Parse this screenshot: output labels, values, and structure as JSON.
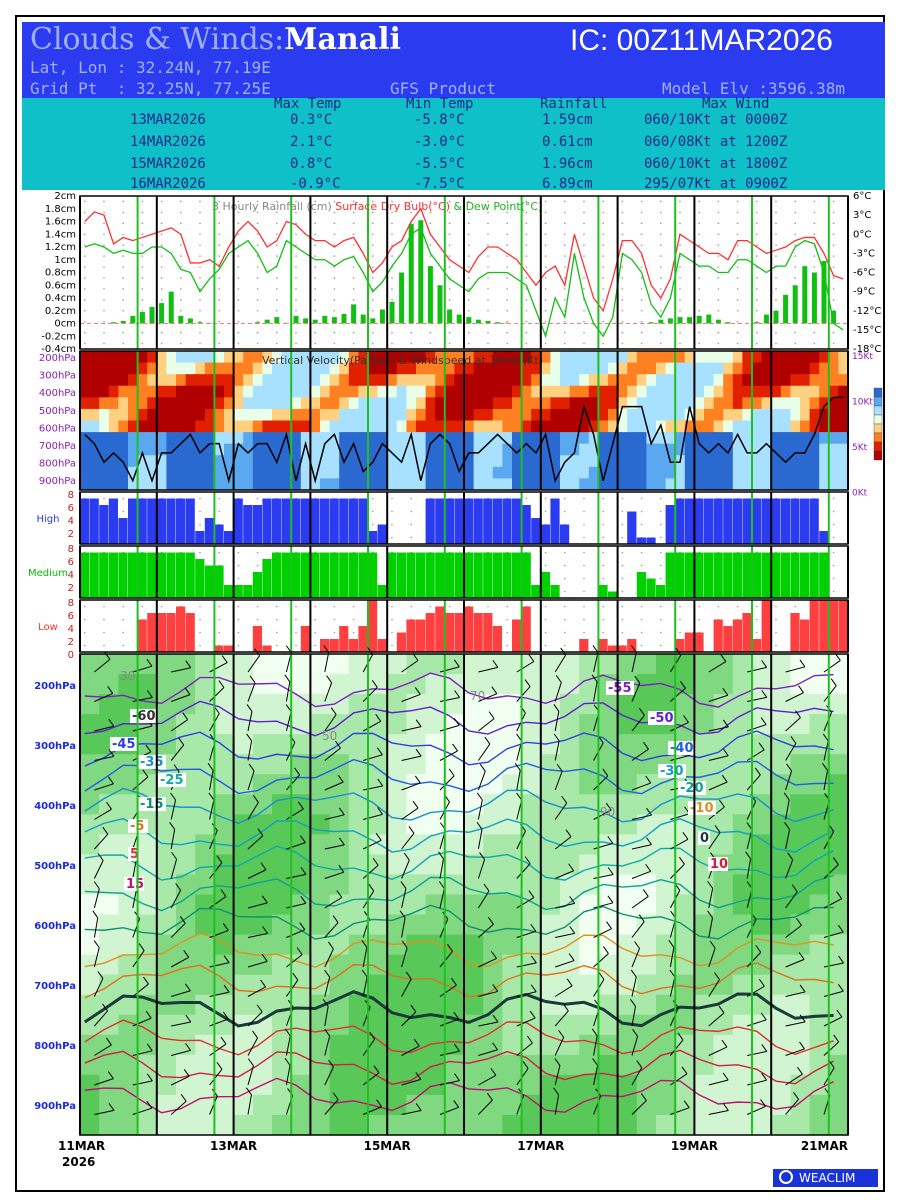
{
  "header": {
    "title_prefix": "Clouds & Winds:",
    "location": "Manali",
    "ic": "IC: 00Z11MAR2026",
    "latlon": "Lat, Lon : 32.24N, 77.19E",
    "gridpt": "Grid Pt  : 32.25N, 77.25E",
    "product": "GFS Product",
    "elev": "Model Elv :3596.38m"
  },
  "table": {
    "columns": [
      "Max Temp",
      "Min Temp",
      "Rainfall",
      "Max Wind"
    ],
    "rows": [
      {
        "date": "13MAR2026",
        "max": "0.3°C",
        "min": "-5.8°C",
        "rain": "1.59cm",
        "wind": "060/10Kt at 0000Z"
      },
      {
        "date": "14MAR2026",
        "max": "2.1°C",
        "min": "-3.0°C",
        "rain": "0.61cm",
        "wind": "060/08Kt at 1200Z"
      },
      {
        "date": "15MAR2026",
        "max": "0.8°C",
        "min": "-5.5°C",
        "rain": "1.96cm",
        "wind": "060/10Kt at 1800Z"
      },
      {
        "date": "16MAR2026",
        "max": "-0.9°C",
        "min": "-7.5°C",
        "rain": "6.89cm",
        "wind": "295/07Kt at 0900Z"
      }
    ]
  },
  "chart_data": [
    {
      "type": "line",
      "title": "3 Hourly Rainfall (cm)  Surface Dry Bulb(°C)  & Dew Point(°C)",
      "title_parts": [
        "3 Hourly Rainfall (cm)",
        "Surface Dry Bulb(°C)",
        "& Dew Point(°C)"
      ],
      "y_left_ticks": [
        "2cm",
        "1.8cm",
        "1.6cm",
        "1.4cm",
        "1.2cm",
        "1cm",
        "0.8cm",
        "0.6cm",
        "0.4cm",
        "0.2cm",
        "0cm",
        "-0.2cm",
        "-0.4cm"
      ],
      "y_right_ticks": [
        "6°C",
        "3°C",
        "0°C",
        "-3°C",
        "-6°C",
        "-9°C",
        "-12°C",
        "-15°C",
        "-18°C"
      ],
      "ylim_left": [
        -0.4,
        2
      ],
      "ylim_right": [
        -18,
        6
      ],
      "colors": {
        "drybulb": "#ff3030",
        "dewpoint": "#10c010",
        "rain": "#10c010"
      },
      "rain_cm": [
        0,
        0,
        0,
        0.02,
        0.04,
        0.12,
        0.18,
        0.26,
        0.32,
        0.5,
        0.12,
        0.08,
        0.02,
        0.01,
        0,
        0,
        0,
        0,
        0.02,
        0.06,
        0.1,
        0.01,
        0.12,
        0.08,
        0.06,
        0.12,
        0.1,
        0.15,
        0.3,
        0.14,
        0.08,
        0.22,
        0.34,
        0.8,
        1.56,
        1.62,
        0.9,
        0.6,
        0.22,
        0.14,
        0.1,
        0.06,
        0.04,
        0.02,
        0.01,
        0,
        0,
        0,
        0,
        0,
        0,
        0,
        0,
        0,
        0,
        0,
        0,
        0,
        0,
        0.02,
        0.06,
        0.08,
        0.1,
        0.1,
        0.12,
        0.14,
        0.06,
        0.02,
        0,
        0,
        0.02,
        0.14,
        0.2,
        0.45,
        0.6,
        0.9,
        0.8,
        0.98,
        0.2,
        0
      ],
      "drybulb_c": [
        2,
        3.5,
        3,
        -1.5,
        -0.5,
        -1,
        -0.5,
        0,
        0.5,
        1,
        0,
        -4.5,
        -4.5,
        -4,
        -5,
        -2,
        0.5,
        2,
        0.5,
        -2,
        -1,
        2,
        1.5,
        0,
        -1,
        -1,
        -2,
        -1,
        -0.5,
        -3,
        -6,
        -4.5,
        -2,
        -1,
        2,
        4,
        0,
        -2,
        -4,
        -5,
        -6,
        -3.5,
        -2,
        -2,
        -3,
        -4,
        -6,
        -8,
        -6,
        -5,
        -8,
        0,
        -5,
        -10,
        -12,
        -7,
        -1,
        -1,
        -3,
        -8,
        -10,
        -7,
        0,
        -1,
        -2,
        -3,
        -3,
        -4,
        -1,
        -1,
        -2,
        -3,
        -2.5,
        -2,
        -1,
        -0.5,
        -0.5,
        -3,
        -6.5,
        -7
      ],
      "dewpoint_c": [
        -2,
        -1.5,
        -2,
        -3,
        -2.5,
        -3,
        -3,
        -2,
        -2,
        -3,
        -5.5,
        -6,
        -9,
        -7,
        -5.5,
        -3,
        -2,
        -1,
        -3,
        -6,
        -5,
        -1,
        -2,
        -3,
        -4,
        -4,
        -5,
        -4,
        -3.5,
        -6,
        -9,
        -7.5,
        -5,
        -3,
        0,
        1,
        -3,
        -5,
        -7,
        -8,
        -9,
        -7,
        -6,
        -6,
        -6,
        -7,
        -8,
        -12,
        -16,
        -10,
        -13,
        -3,
        -10,
        -14,
        -16,
        -13,
        -3,
        -4,
        -6,
        -11,
        -13,
        -10,
        -3,
        -4,
        -5,
        -5,
        -6,
        -6,
        -4,
        -4,
        -5,
        -6,
        -5,
        -5,
        -2,
        -1,
        -1.5,
        -6,
        -14,
        -15
      ]
    },
    {
      "type": "heatmap",
      "title": "Vertical Velocity(Pa/Sec) & Windspeed at 10mtr(Kt)",
      "y_ticks": [
        "200hPa",
        "300hPa",
        "400hPa",
        "500hPa",
        "600hPa",
        "700hPa",
        "800hPa",
        "900hPa"
      ],
      "y_right_ticks": [
        "15Kt",
        "10Kt",
        "5Kt",
        "0Kt"
      ],
      "ylim_right": [
        0,
        15
      ],
      "legend_colors": [
        "#2a6ad0",
        "#5aa8f0",
        "#a8e0ff",
        "#e8ffe8",
        "#ffd080",
        "#ff8020",
        "#e02000",
        "#b00000"
      ],
      "windspeed_kt": [
        6,
        5,
        3,
        4,
        3,
        1,
        4,
        1,
        4,
        4,
        5,
        6,
        4,
        5,
        5,
        1,
        5,
        4,
        5,
        5,
        3,
        6,
        1,
        5,
        1,
        5,
        6,
        3,
        5,
        2,
        3,
        5,
        4,
        3,
        6,
        1,
        5,
        6,
        5,
        2,
        4,
        4,
        5,
        6,
        5,
        4,
        5,
        4,
        6,
        1,
        3,
        4,
        9,
        6,
        1,
        5,
        9,
        9,
        9,
        5,
        7,
        3,
        3,
        9,
        5,
        4,
        5,
        4,
        6,
        4,
        4,
        5,
        4,
        3,
        4,
        4,
        6,
        9,
        10,
        10
      ]
    },
    {
      "type": "bar",
      "title": "High",
      "ylim": [
        0,
        8
      ],
      "y_ticks": [
        "8",
        "6",
        "4",
        "2"
      ],
      "color": "#2a3bf0",
      "values": [
        7,
        7,
        6,
        7,
        4,
        7,
        7,
        7,
        7,
        7,
        7,
        7,
        2,
        4,
        3,
        2,
        7,
        6,
        6,
        7,
        7,
        7,
        7,
        7,
        7,
        7,
        7,
        7,
        7,
        7,
        2,
        3,
        0,
        0,
        0,
        0,
        7,
        7,
        7,
        7,
        7,
        7,
        7,
        7,
        7,
        7,
        6,
        4,
        3,
        7,
        3,
        0,
        0,
        0,
        0,
        0,
        0,
        5,
        1,
        1,
        0,
        6,
        7,
        7,
        7,
        7,
        7,
        7,
        7,
        7,
        7,
        7,
        7,
        7,
        7,
        7,
        7,
        2,
        0,
        0
      ]
    },
    {
      "type": "bar",
      "title": "Medium",
      "ylim": [
        0,
        8
      ],
      "y_ticks": [
        "8",
        "6",
        "4",
        "2"
      ],
      "color": "#00d000",
      "values": [
        7,
        7,
        7,
        7,
        7,
        7,
        7,
        7,
        7,
        7,
        7,
        7,
        6,
        5,
        5,
        2,
        2,
        2,
        4,
        6,
        7,
        7,
        7,
        7,
        7,
        7,
        7,
        7,
        7,
        7,
        7,
        2,
        7,
        7,
        7,
        7,
        7,
        7,
        7,
        7,
        7,
        7,
        7,
        7,
        7,
        7,
        7,
        2,
        4,
        2,
        0,
        0,
        0,
        0,
        2,
        1,
        0,
        0,
        4,
        3,
        2,
        7,
        7,
        7,
        7,
        7,
        7,
        7,
        7,
        7,
        7,
        7,
        7,
        7,
        7,
        7,
        7,
        7,
        0,
        0
      ]
    },
    {
      "type": "bar",
      "title": "Low",
      "ylim": [
        0,
        8
      ],
      "y_ticks": [
        "8",
        "6",
        "4",
        "2",
        "0"
      ],
      "color": "#ff4040",
      "values": [
        0,
        0,
        0,
        0,
        0,
        0,
        5,
        6,
        6,
        6,
        7,
        6,
        0,
        0,
        1,
        1,
        0,
        0,
        4,
        1,
        0,
        0,
        0,
        4,
        0,
        2,
        2,
        4,
        2,
        4,
        8,
        2,
        0,
        3,
        5,
        5,
        6,
        7,
        6,
        6,
        7,
        6,
        6,
        4,
        0,
        5,
        7,
        0,
        0,
        0,
        0,
        0,
        2,
        0,
        2,
        1,
        1,
        2,
        0,
        0,
        0,
        0,
        2,
        3,
        3,
        0,
        5,
        4,
        5,
        6,
        2,
        8,
        0,
        0,
        6,
        5,
        8,
        8,
        8,
        8
      ]
    },
    {
      "type": "heatmap",
      "title": "",
      "y_ticks": [
        "200hPa",
        "300hPa",
        "400hPa",
        "500hPa",
        "600hPa",
        "700hPa",
        "800hPa",
        "900hPa"
      ],
      "contour_labels": [
        "-55",
        "-60",
        "-50",
        "-45",
        "-40",
        "-35",
        "-30",
        "-25",
        "-20",
        "-15",
        "-10",
        "-5",
        "0",
        "5",
        "10",
        "15"
      ],
      "humidity_labels": [
        "30",
        "50",
        "70",
        "90"
      ],
      "colors": {
        "fill": "#58c858",
        "isotherm_zero": "#1a3a3a"
      }
    }
  ],
  "x_axis": {
    "ticks": [
      "11MAR",
      "13MAR",
      "15MAR",
      "17MAR",
      "19MAR",
      "21MAR"
    ],
    "year": "2026"
  },
  "watermark": {
    "icon": "weaclim-logo-icon",
    "text": "WEACLIM"
  }
}
